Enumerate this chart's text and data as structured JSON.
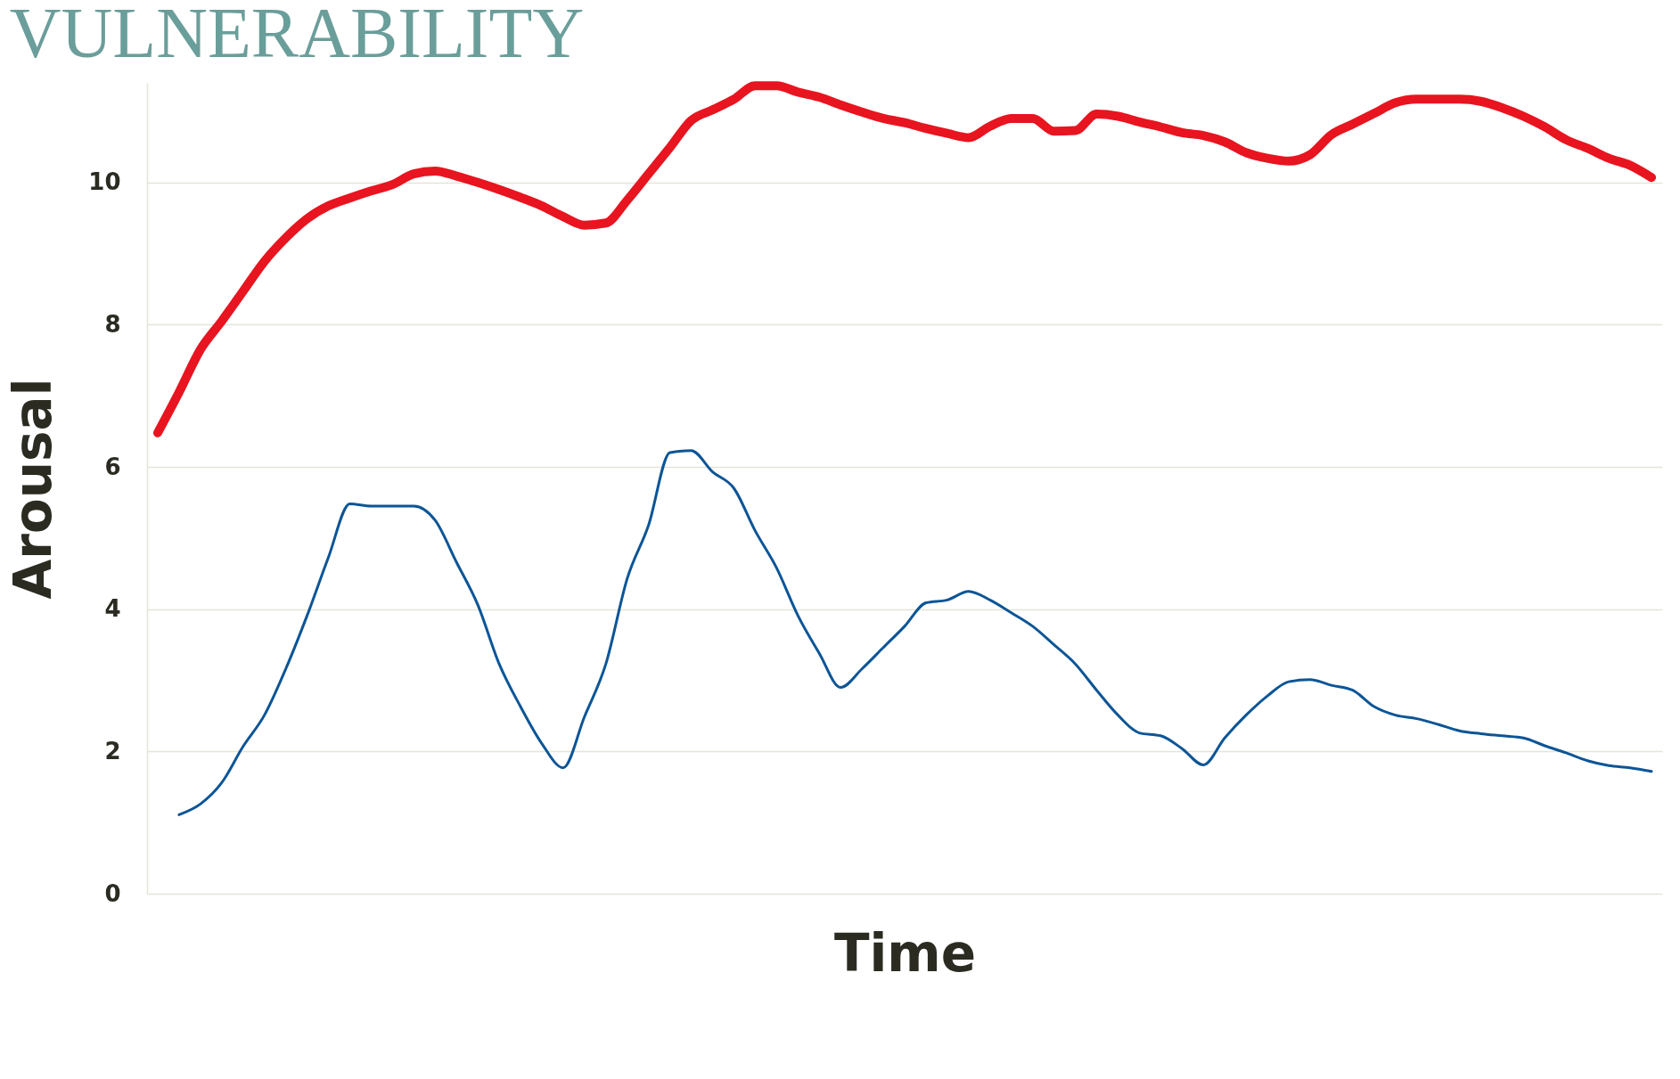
{
  "chart_data": {
    "type": "line",
    "title": "VULNERABILITY",
    "xlabel": "Time",
    "ylabel": "Arousal",
    "categories": [
      null,
      null,
      null,
      null,
      null,
      null,
      null,
      null,
      null,
      null,
      null,
      null,
      null,
      null,
      null,
      null,
      null,
      null,
      null,
      null,
      null,
      null,
      null,
      null,
      null,
      null,
      null,
      null,
      null,
      null,
      null,
      null,
      null,
      null,
      null,
      null,
      null,
      null,
      null,
      null,
      null,
      null,
      null,
      null,
      null,
      null,
      null,
      null,
      null,
      null,
      null,
      null,
      null,
      null,
      null,
      null,
      null,
      null,
      null,
      null,
      null,
      null,
      null,
      null,
      null,
      null,
      null,
      null,
      null,
      null,
      null
    ],
    "series": [
      {
        "color": "#e8141f",
        "values": [
          6.48,
          7.05,
          7.65,
          8.05,
          8.47,
          8.89,
          9.22,
          9.49,
          9.67,
          9.78,
          9.88,
          9.97,
          10.12,
          10.16,
          10.09,
          10.0,
          9.9,
          9.79,
          9.67,
          9.52,
          9.4,
          9.43,
          9.75,
          10.12,
          10.49,
          10.87,
          11.02,
          11.17,
          11.36,
          11.36,
          11.27,
          11.2,
          11.09,
          10.99,
          10.9,
          10.84,
          10.76,
          10.69,
          10.63,
          10.79,
          10.9,
          10.9,
          10.72,
          10.73,
          10.96,
          10.93,
          10.85,
          10.78,
          10.7,
          10.66,
          10.57,
          10.42,
          10.34,
          10.3,
          10.39,
          10.67,
          10.82,
          10.97,
          11.12,
          11.17,
          11.17,
          11.17,
          11.14,
          11.05,
          10.93,
          10.78,
          10.6,
          10.48,
          10.34,
          10.24,
          10.07
        ]
      },
      {
        "color": "#0c5596",
        "values": [
          null,
          1.11,
          1.26,
          1.56,
          2.07,
          2.51,
          3.16,
          3.91,
          4.73,
          5.48,
          5.45,
          5.45,
          5.45,
          5.25,
          4.66,
          4.06,
          3.23,
          2.63,
          2.11,
          1.77,
          2.49,
          3.23,
          4.43,
          5.18,
          6.2,
          6.23,
          5.93,
          5.7,
          5.1,
          4.58,
          3.91,
          3.38,
          2.9,
          3.16,
          3.46,
          3.76,
          4.09,
          4.13,
          4.25,
          4.13,
          3.95,
          3.76,
          3.5,
          3.23,
          2.86,
          2.51,
          2.26,
          2.22,
          2.04,
          1.81,
          2.19,
          2.51,
          2.78,
          2.98,
          3.01,
          2.93,
          2.86,
          2.63,
          2.51,
          2.46,
          2.38,
          2.29,
          2.25,
          2.22,
          2.19,
          2.08,
          1.98,
          1.87,
          1.8,
          1.77,
          1.72
        ]
      }
    ],
    "ylim": [
      0,
      11.4
    ],
    "yticks": [
      0,
      2,
      4,
      6,
      8,
      10
    ],
    "grid": "y",
    "tick_labels": "y"
  }
}
